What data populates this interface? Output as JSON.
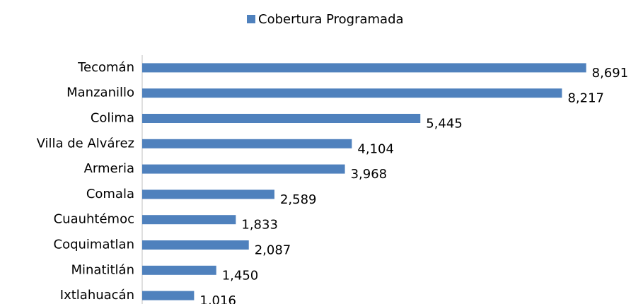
{
  "chart_data": {
    "type": "bar",
    "orientation": "horizontal",
    "legend": "top",
    "series": [
      {
        "name": "Cobertura Programada",
        "color": "#4f81bd",
        "values": [
          8691,
          8217,
          5445,
          4104,
          3968,
          2589,
          1833,
          2087,
          1450,
          1016
        ],
        "value_labels": [
          "8,691",
          "8,217",
          "5,445",
          "4,104",
          "3,968",
          "2,589",
          "1,833",
          "2,087",
          "1,450",
          "1,016"
        ]
      }
    ],
    "categories": [
      "Tecomán",
      "Manzanillo",
      "Colima",
      "Villa de Alvárez",
      "Armeria",
      "Comala",
      "Cuauhtémoc",
      "Coquimatlan",
      "Minatitlán",
      "Ixtlahuacán"
    ],
    "xlim": [
      0,
      9000
    ]
  }
}
